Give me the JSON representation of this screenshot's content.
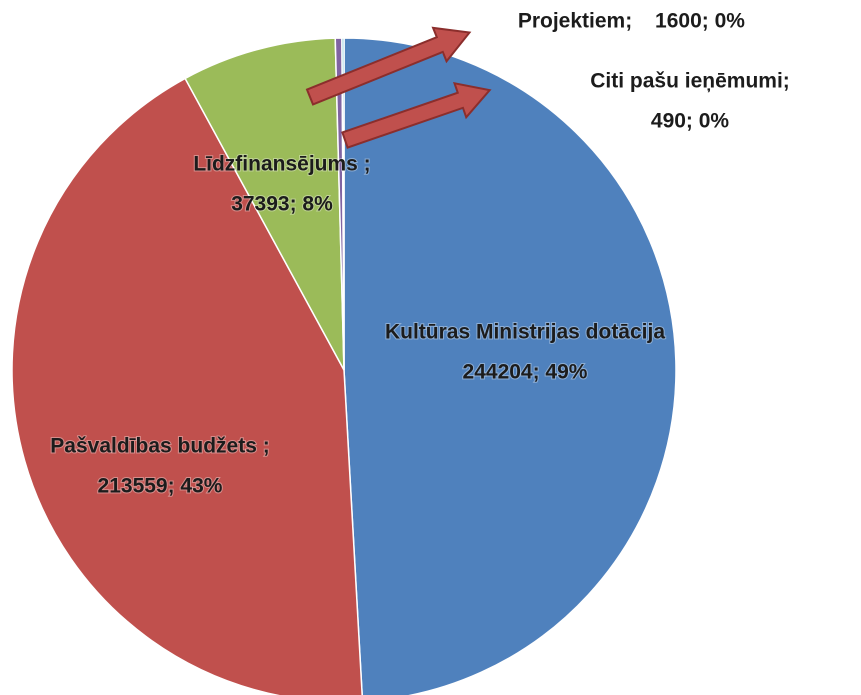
{
  "chart_data": {
    "type": "pie",
    "categories": [
      "Kultūras Ministrijas dotācija",
      "Pašvaldības budžets ;",
      "Līdzfinansējums ;",
      "Projektiem;",
      "Citi pašu ieņēmumi;"
    ],
    "values": [
      244204,
      213559,
      37393,
      1600,
      490
    ],
    "value_labels": [
      "244204; 49%",
      "213559; 43%",
      "37393; 8%",
      "1600; 0%",
      "490; 0%"
    ],
    "colors": [
      "#4f81bd",
      "#c0504d",
      "#9bbb59",
      "#8064a2",
      "#4bacc6"
    ]
  }
}
